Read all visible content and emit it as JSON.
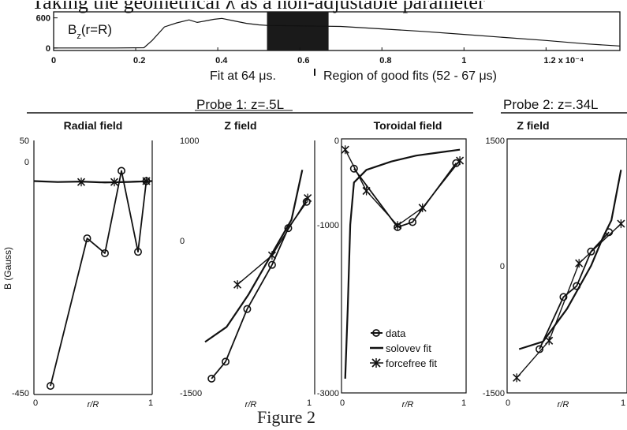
{
  "header_text": "Taking the geometrical λ as a non-adjustable parameter",
  "colors": {
    "ink": "#111111",
    "shade": "#1a1a1a",
    "paper": "#ffffff"
  },
  "timeline": {
    "label": "Bz(r=R)",
    "label_main": "B",
    "label_sub": "z",
    "label_rest": "(r=R)",
    "y_ticks": [
      "600",
      "0"
    ],
    "x_ticks": [
      "0",
      "0.2",
      "0.4",
      "0.6",
      "0.8",
      "1",
      "1.2 x 10⁻⁴"
    ],
    "caption_fit": "Fit at 64 μs.",
    "caption_region": "Region of good fits (52 - 67 μs)"
  },
  "probes": {
    "probe1": "Probe 1: z=.5L",
    "probe2": "Probe 2: z=.34L"
  },
  "legend": {
    "data": "data",
    "solovev": "solovev fit",
    "forcefree": "forcefree fit"
  },
  "figure_caption": "Figure 2",
  "chart_data": [
    {
      "type": "line",
      "title": "Bz(r=R)",
      "x_ticks": [
        "0",
        "0.2",
        "0.4",
        "0.6",
        "0.8",
        "1",
        "1.2 x 10⁻⁴"
      ],
      "y_ticks": [
        "600",
        "0"
      ],
      "xlim": [
        0,
        0.000138
      ],
      "ylim": [
        -50,
        720
      ],
      "highlight_region": [
        5.2e-05,
        6.7e-05
      ],
      "fit_time": 6.4e-05,
      "series": [
        {
          "x": [
            0,
            1.5e-05,
            2.2e-05,
            2.4e-05,
            2.7e-05,
            3e-05,
            3.3e-05,
            3.5e-05,
            3.7e-05,
            3.9e-05,
            4.1e-05,
            4.4e-05,
            4.7e-05,
            5e-05,
            5.2e-05,
            7e-05,
            8e-05,
            9e-05,
            0.0001,
            0.00011,
            0.00012,
            0.00013,
            0.000138
          ],
          "y": [
            0,
            0,
            5,
            150,
            420,
            500,
            560,
            510,
            540,
            570,
            590,
            540,
            490,
            460,
            450,
            430,
            380,
            330,
            270,
            210,
            150,
            80,
            40
          ]
        }
      ]
    },
    {
      "type": "line",
      "title": "Radial field",
      "ylabel": "B (Gauss)",
      "xlabel": "r/R",
      "x_ticks": [
        "0",
        "1"
      ],
      "y_ticks": [
        "50",
        "0",
        "-450"
      ],
      "xlim": [
        0,
        1
      ],
      "ylim": [
        -450,
        50
      ],
      "series": [
        {
          "name": "data",
          "x": [
            0.14,
            0.45,
            0.6,
            0.74,
            0.88,
            0.95
          ],
          "y": [
            -440,
            -123,
            -155,
            22,
            -152,
            0
          ]
        },
        {
          "name": "solovev fit",
          "x": [
            0,
            0.2,
            0.4,
            0.6,
            0.8,
            1
          ],
          "y": [
            0,
            -2,
            -1,
            -3,
            -2,
            0
          ]
        },
        {
          "name": "forcefree fit",
          "x": [
            0.4,
            0.68,
            0.95
          ],
          "y": [
            -2,
            -2,
            0
          ]
        }
      ]
    },
    {
      "type": "line",
      "title": "Z field",
      "x_ticks": [
        "1"
      ],
      "y_ticks": [
        "1000",
        "0",
        "-1500"
      ],
      "xlabel": "r/R",
      "xlim": [
        0,
        1
      ],
      "ylim": [
        -1500,
        1000
      ],
      "series": [
        {
          "name": "data",
          "x": [
            0.06,
            0.19,
            0.39,
            0.62,
            0.77,
            0.94
          ],
          "y": [
            -1390,
            -1210,
            -650,
            -180,
            210,
            490
          ]
        },
        {
          "name": "solovev fit",
          "x": [
            0,
            0.2,
            0.4,
            0.6,
            0.8,
            0.9
          ],
          "y": [
            -1000,
            -840,
            -500,
            -100,
            300,
            830
          ]
        },
        {
          "name": "forcefree fit",
          "x": [
            0.3,
            0.62,
            0.95
          ],
          "y": [
            -390,
            -80,
            530
          ]
        }
      ]
    },
    {
      "type": "line",
      "title": "Toroidal field",
      "xlabel": "r/R",
      "x_ticks": [
        "0",
        "1"
      ],
      "y_ticks": [
        "0",
        "-1000",
        "-3000"
      ],
      "xlim": [
        0,
        1
      ],
      "ylim": [
        -3000,
        0
      ],
      "series": [
        {
          "name": "data",
          "x": [
            0.1,
            0.45,
            0.57,
            0.92
          ],
          "y": [
            -335,
            -1030,
            -970,
            -270
          ]
        },
        {
          "name": "solovev fit",
          "x": [
            0.03,
            0.05,
            0.07,
            0.1,
            0.2,
            0.4,
            0.6,
            0.8,
            0.95
          ],
          "y": [
            -2830,
            -2000,
            -1000,
            -500,
            -350,
            -250,
            -180,
            -140,
            -110
          ]
        },
        {
          "name": "forcefree fit",
          "x": [
            0.03,
            0.2,
            0.45,
            0.65,
            0.95
          ],
          "y": [
            -110,
            -600,
            -1010,
            -800,
            -240
          ]
        }
      ]
    },
    {
      "type": "line",
      "title": "Z field",
      "xlabel": "r/R",
      "x_ticks": [
        "0",
        "1"
      ],
      "y_ticks": [
        "1500",
        "0",
        "-1500"
      ],
      "xlim": [
        0,
        1
      ],
      "ylim": [
        -1500,
        1500
      ],
      "series": [
        {
          "name": "data",
          "x": [
            0.27,
            0.47,
            0.58,
            0.7,
            0.85
          ],
          "y": [
            -980,
            -360,
            -230,
            180,
            410
          ]
        },
        {
          "name": "solovev fit",
          "x": [
            0.1,
            0.3,
            0.5,
            0.7,
            0.8,
            0.87,
            0.95
          ],
          "y": [
            -980,
            -890,
            -500,
            10,
            350,
            550,
            1150
          ]
        },
        {
          "name": "forcefree fit",
          "x": [
            0.08,
            0.35,
            0.6,
            0.95
          ],
          "y": [
            -1320,
            -880,
            40,
            510
          ]
        }
      ]
    }
  ]
}
